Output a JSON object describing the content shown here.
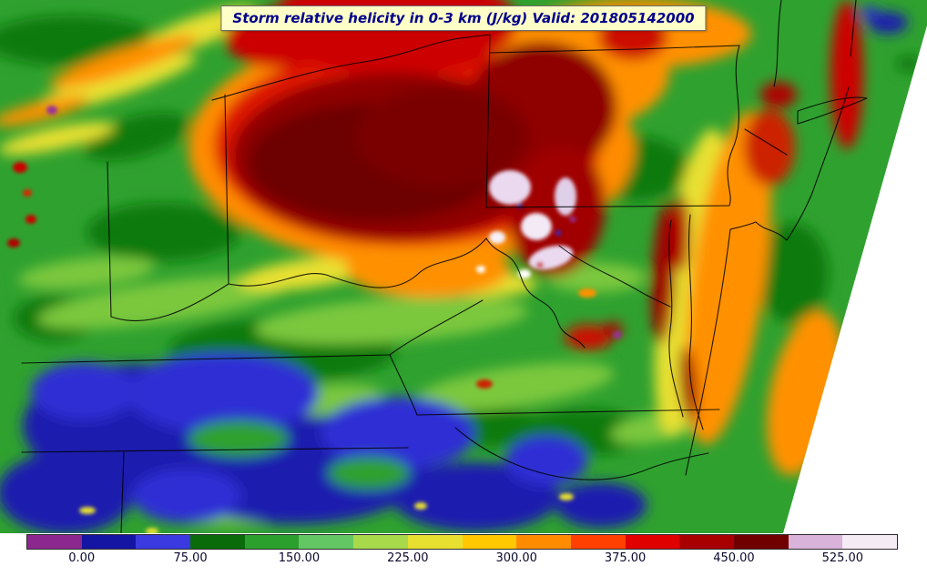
{
  "title": {
    "text": "Storm relative helicity in 0-3 km (J/kg) Valid: 201805142000"
  },
  "chart_data": {
    "type": "heatmap",
    "title": "Storm relative helicity in 0-3 km (J/kg) Valid: 201805142000",
    "field": "Storm relative helicity in 0-3 km",
    "units": "J/kg",
    "valid_time": "201805142000",
    "region": "Eastern United States (Ohio Valley and Mid-Atlantic) with state borders and coastline",
    "colorbar": {
      "orientation": "horizontal",
      "tick_labels": [
        "0.00",
        "75.00",
        "150.00",
        "225.00",
        "300.00",
        "375.00",
        "450.00",
        "525.00"
      ],
      "tick_values": [
        0,
        75,
        150,
        225,
        300,
        375,
        450,
        525
      ],
      "value_range": [
        -37.5,
        562.5
      ],
      "colors": [
        "#8c2790",
        "#1515a3",
        "#3a3ae0",
        "#0a6b0a",
        "#2ca02c",
        "#63c763",
        "#a8d94a",
        "#e8e030",
        "#ffc800",
        "#ff8c00",
        "#ff4000",
        "#e00000",
        "#a80000",
        "#700000",
        "#d9b3d9",
        "#f5ebf5"
      ]
    },
    "notable_features": [
      "Broad maximum of dark red values (>375 J/kg) centered over Ohio and western Pennsylvania",
      "Extreme white/lavender values (>450 J/kg) in small pockets near central Pennsylvania / Maryland",
      "Low blue values (<75 J/kg) across Kentucky, Tennessee and the southern Appalachians",
      "Orange/red band of enhanced helicity along the Atlantic coast and New Jersey shore",
      "White no-data wedge along the lower-right edge of the model domain"
    ]
  },
  "style_colors": {
    "page_background": "#ffffff",
    "title_background": "#ffffc8",
    "title_text": "#00008b",
    "map_base_green": "#2fa12f",
    "border_lines": "#000000"
  }
}
